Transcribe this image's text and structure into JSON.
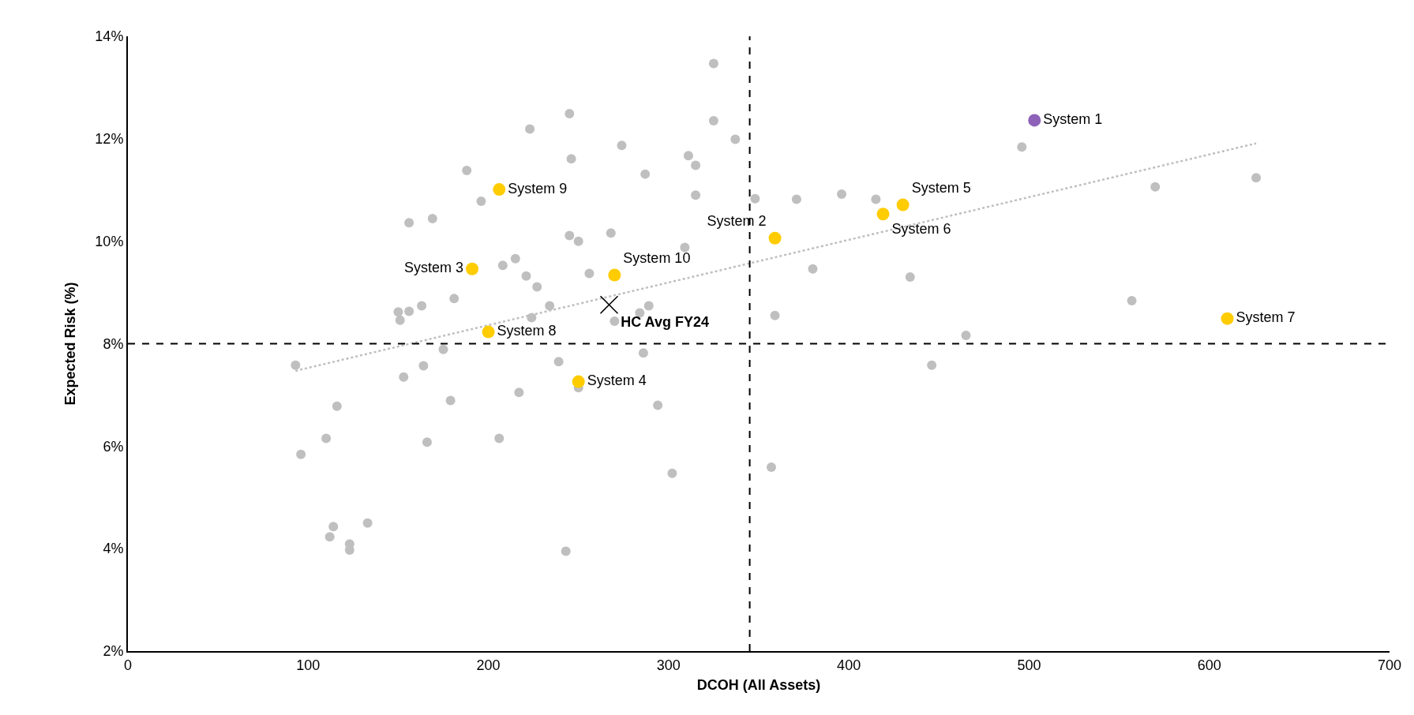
{
  "chart_data": {
    "type": "scatter",
    "xlabel": "DCOH (All Assets)",
    "ylabel": "Expected Risk (%)",
    "xlim": [
      0,
      700
    ],
    "xticks": [
      0,
      100,
      200,
      300,
      400,
      500,
      600,
      700
    ],
    "ylim": [
      2,
      14
    ],
    "yticks": [
      {
        "value": 2,
        "label": "2%"
      },
      {
        "value": 4,
        "label": "4%"
      },
      {
        "value": 6,
        "label": "6%"
      },
      {
        "value": 8,
        "label": "8%"
      },
      {
        "value": 10,
        "label": "10%"
      },
      {
        "value": 12,
        "label": "12%"
      },
      {
        "value": 14,
        "label": "14%"
      }
    ],
    "legend": false,
    "marker": "circle",
    "ref_lines": [
      {
        "axis": "x",
        "value": 345,
        "color": "#000000",
        "line_style": "dashed"
      },
      {
        "axis": "y",
        "value": 8,
        "color": "#000000",
        "line_style": "dashed"
      }
    ],
    "series": [
      {
        "color": "#bfbfbf",
        "x": [
          325,
          245,
          223,
          325,
          337,
          274,
          188,
          246,
          311,
          315,
          287,
          196,
          315,
          348,
          371,
          396,
          415,
          156,
          169,
          245,
          250,
          268,
          309,
          208,
          215,
          221,
          227,
          256,
          234,
          224,
          181,
          150,
          156,
          163,
          151,
          289,
          284,
          270,
          380,
          434,
          359,
          557,
          570,
          626,
          496,
          465,
          446,
          93,
          175,
          153,
          164,
          239,
          250,
          217,
          179,
          286,
          294,
          302,
          357,
          243,
          116,
          110,
          96,
          166,
          206,
          114,
          112,
          123,
          123,
          133
        ],
        "values": [
          13.47,
          12.49,
          12.19,
          12.35,
          11.99,
          11.87,
          11.38,
          11.61,
          11.67,
          11.48,
          11.31,
          10.78,
          10.9,
          10.83,
          10.82,
          10.92,
          10.82,
          10.36,
          10.44,
          10.11,
          10.0,
          10.16,
          9.88,
          9.53,
          9.66,
          9.32,
          9.11,
          9.37,
          8.74,
          8.51,
          8.88,
          8.62,
          8.63,
          8.74,
          8.46,
          8.74,
          8.6,
          8.44,
          9.46,
          9.3,
          8.55,
          8.84,
          11.06,
          11.24,
          11.84,
          8.16,
          7.58,
          7.58,
          7.89,
          7.35,
          7.57,
          7.65,
          7.14,
          7.05,
          6.89,
          7.82,
          6.8,
          5.47,
          5.59,
          3.95,
          6.78,
          6.15,
          5.84,
          6.08,
          6.15,
          4.43,
          4.23,
          4.09,
          3.97,
          4.5
        ]
      },
      {
        "type": "line",
        "color": "#bfbfbf",
        "line_style": "dotted",
        "marker": "none",
        "x": [
          93,
          626
        ],
        "values": [
          7.47,
          11.91
        ]
      },
      {
        "name": "HC Avg FY24",
        "color": "#000000",
        "marker": "cross",
        "x": [
          267
        ],
        "values": [
          8.76
        ]
      },
      {
        "name": "System 1",
        "color": "#8e62b9",
        "x": [
          503
        ],
        "values": [
          12.36
        ]
      },
      {
        "name": "System 2",
        "color": "#ffcc00",
        "x": [
          359
        ],
        "values": [
          10.06
        ]
      },
      {
        "name": "System 3",
        "color": "#ffcc00",
        "x": [
          191
        ],
        "values": [
          9.46
        ]
      },
      {
        "name": "System 4",
        "color": "#ffcc00",
        "x": [
          250
        ],
        "values": [
          7.26
        ]
      },
      {
        "name": "System 5",
        "color": "#ffcc00",
        "x": [
          430
        ],
        "values": [
          10.71
        ]
      },
      {
        "name": "System 6",
        "color": "#ffcc00",
        "x": [
          419
        ],
        "values": [
          10.53
        ]
      },
      {
        "name": "System 7",
        "color": "#ffcc00",
        "x": [
          610
        ],
        "values": [
          8.49
        ]
      },
      {
        "name": "System 8",
        "color": "#ffcc00",
        "x": [
          200
        ],
        "values": [
          8.23
        ]
      },
      {
        "name": "System 9",
        "color": "#ffcc00",
        "x": [
          206
        ],
        "values": [
          11.01
        ]
      },
      {
        "name": "System 10",
        "color": "#ffcc00",
        "x": [
          270
        ],
        "values": [
          9.34
        ]
      }
    ]
  }
}
